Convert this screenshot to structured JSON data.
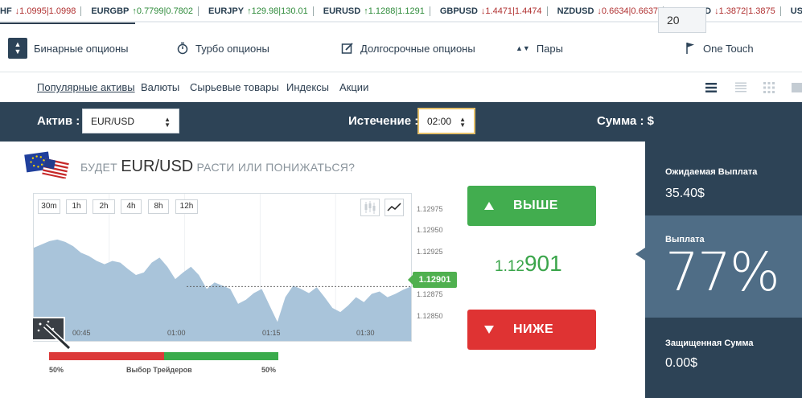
{
  "ticker": [
    {
      "sym": "HF",
      "val": "↓1.0995|1.0998",
      "dir": "down"
    },
    {
      "sym": "EURGBP",
      "val": "↑0.7799|0.7802",
      "dir": "up"
    },
    {
      "sym": "EURJPY",
      "val": "↑129.98|130.01",
      "dir": "up"
    },
    {
      "sym": "EURUSD",
      "val": "↑1.1288|1.1291",
      "dir": "up"
    },
    {
      "sym": "GBPUSD",
      "val": "↓1.4471|1.4474",
      "dir": "down"
    },
    {
      "sym": "NZDUSD",
      "val": "↓0.6634|0.6637",
      "dir": "down"
    },
    {
      "sym": "USDCAD",
      "val": "↓1.3872|1.3875",
      "dir": "down"
    },
    {
      "sym": "USDCHF",
      "val": "",
      "dir": "down"
    }
  ],
  "option_types": [
    {
      "label": "Бинарные опционы",
      "icon": "updown-icon"
    },
    {
      "label": "Турбо опционы",
      "icon": "stopwatch-icon"
    },
    {
      "label": "Долгосрочные опционы",
      "icon": "edit-icon"
    },
    {
      "label": "Пары",
      "icon": "pairs-arrows-icon"
    },
    {
      "label": "One Touch",
      "icon": "flag-icon"
    }
  ],
  "categories": [
    "Популярные активы",
    "Валюты",
    "Сырьевые товары",
    "Индексы",
    "Акции"
  ],
  "controls": {
    "asset_label": "Актив :",
    "asset_value": "EUR/USD",
    "expiry_label": "Истечение :",
    "expiry_value": "02:00",
    "amount_label": "Сумма : $",
    "amount_value": "20"
  },
  "question": {
    "prefix": "БУДЕТ",
    "asset": "EUR/USD",
    "suffix": "РАСТИ ИЛИ ПОНИЖАТЬСЯ?"
  },
  "timeframes": [
    "30m",
    "1h",
    "2h",
    "4h",
    "8h",
    "12h"
  ],
  "chart_data": {
    "type": "area",
    "y_ticks": [
      "1.12975",
      "1.12950",
      "1.12925",
      "1.12900",
      "1.12875",
      "1.12850"
    ],
    "x_ticks": [
      "00:45",
      "01:00",
      "01:15",
      "01:30"
    ],
    "ylim": [
      1.12835,
      1.12992
    ],
    "current_price": "1.12901",
    "series": [
      {
        "values": [
          1.12948,
          1.12952,
          1.12956,
          1.12958,
          1.12955,
          1.1295,
          1.12942,
          1.12938,
          1.12932,
          1.12928,
          1.12932,
          1.1293,
          1.12922,
          1.12915,
          1.12918,
          1.1293,
          1.12936,
          1.12925,
          1.1291,
          1.12918,
          1.12925,
          1.12915,
          1.12898,
          1.12906,
          1.12902,
          1.12898,
          1.1288,
          1.12885,
          1.12893,
          1.12898,
          1.12878,
          1.12858,
          1.12888,
          1.12902,
          1.12898,
          1.12893,
          1.129,
          1.12888,
          1.12875,
          1.1287,
          1.12878,
          1.12888,
          1.12882,
          1.12892,
          1.12895,
          1.12888,
          1.12892,
          1.12897,
          1.12901
        ]
      }
    ]
  },
  "current_price": {
    "small": "1.12",
    "big": "901"
  },
  "buttons": {
    "up": "ВЫШЕ",
    "down": "НИЖЕ"
  },
  "sentiment": {
    "label": "Выбор Трейдеров",
    "left": "50%",
    "right": "50%",
    "put_share": 0.5
  },
  "panel": {
    "expected_label": "Ожидаемая Выплата",
    "expected_value": "35.40$",
    "payout_label": "Выплата",
    "payout_value": "77%",
    "protected_label": "Защищенная Сумма",
    "protected_value": "0.00$"
  },
  "colors": {
    "accent_dark": "#2d4356",
    "up": "#42ad4f",
    "down": "#df3333",
    "area": "#a9c4da"
  }
}
